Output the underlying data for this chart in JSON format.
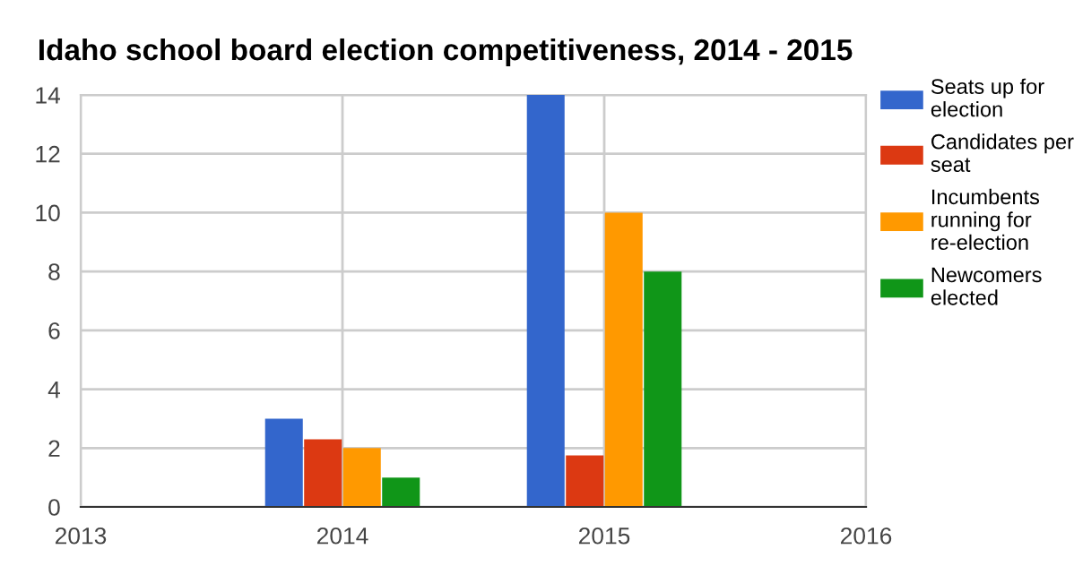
{
  "chart_data": {
    "type": "bar",
    "title": "Idaho school board election competitiveness, 2014 - 2015",
    "x": [
      2014,
      2015
    ],
    "series": [
      {
        "name": "Seats up for election",
        "color": "#3366cc",
        "values": [
          3,
          14
        ]
      },
      {
        "name": "Candidates per seat",
        "color": "#dc3912",
        "values": [
          2.3,
          1.75
        ]
      },
      {
        "name": "Incumbents running for re-election",
        "color": "#ff9900",
        "values": [
          2,
          10
        ]
      },
      {
        "name": "Newcomers elected",
        "color": "#109618",
        "values": [
          1,
          8
        ]
      }
    ],
    "xlim": [
      2013,
      2016
    ],
    "xticks": [
      2013,
      2014,
      2015,
      2016
    ],
    "ylim": [
      0,
      14
    ],
    "yticks": [
      0,
      2,
      4,
      6,
      8,
      10,
      12,
      14
    ],
    "grid": true,
    "legend": "right"
  }
}
